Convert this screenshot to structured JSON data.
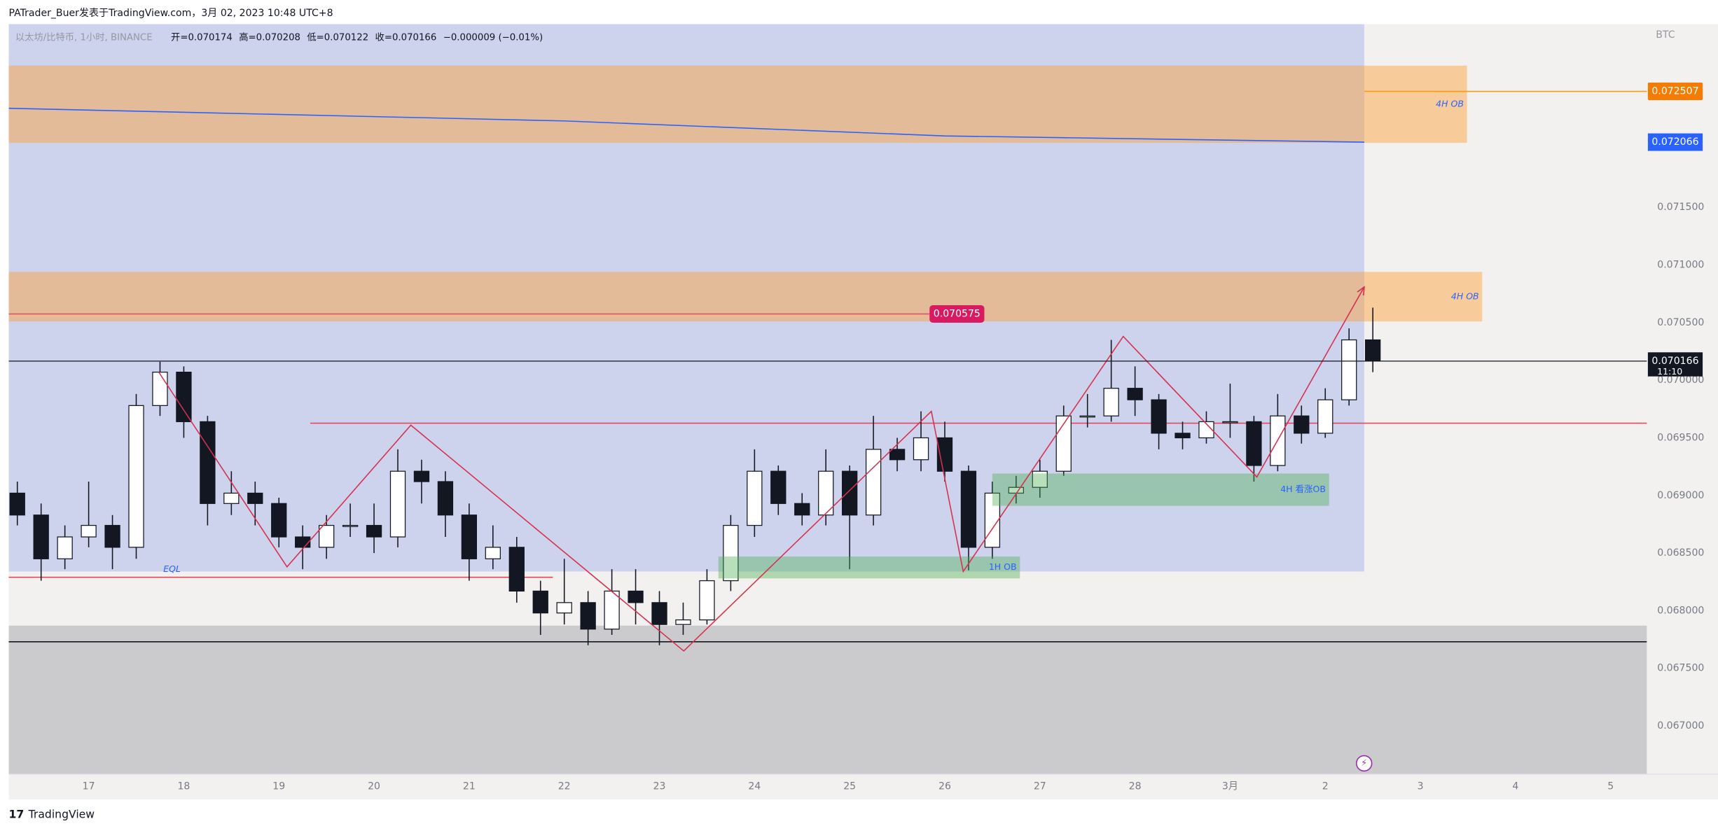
{
  "chart_data": {
    "type": "candlestick",
    "header": "PATrader_Buer发表于TradingView.com，3月 02, 2023 10:48 UTC+8",
    "symbol": "以太坊/比特币, 1小时, BINANCE",
    "ohlc_labels": [
      "开=0.070174",
      "高=0.070208",
      "低=0.070122",
      "收=0.070166",
      "−0.000009 (−0.01%)"
    ],
    "currency": "BTC",
    "countdown": "11:10",
    "footer": "TradingView",
    "xlim": [
      -0.84,
      16.38
    ],
    "ylim": [
      0.06658,
      0.07309
    ],
    "xticks": [
      {
        "value": 0,
        "label": "17"
      },
      {
        "value": 1,
        "label": "18"
      },
      {
        "value": 2,
        "label": "19"
      },
      {
        "value": 3,
        "label": "20"
      },
      {
        "value": 4,
        "label": "21"
      },
      {
        "value": 5,
        "label": "22"
      },
      {
        "value": 6,
        "label": "23"
      },
      {
        "value": 7,
        "label": "24"
      },
      {
        "value": 8,
        "label": "25"
      },
      {
        "value": 9,
        "label": "26"
      },
      {
        "value": 10,
        "label": "27"
      },
      {
        "value": 11,
        "label": "28"
      },
      {
        "value": 12,
        "label": "3月"
      },
      {
        "value": 13,
        "label": "2"
      },
      {
        "value": 14,
        "label": "3"
      },
      {
        "value": 15,
        "label": "4"
      },
      {
        "value": 16,
        "label": "5"
      }
    ],
    "yticks": [
      {
        "value": 0.067,
        "label": "0.067000"
      },
      {
        "value": 0.0675,
        "label": "0.067500"
      },
      {
        "value": 0.068,
        "label": "0.068000"
      },
      {
        "value": 0.0685,
        "label": "0.068500"
      },
      {
        "value": 0.069,
        "label": "0.069000"
      },
      {
        "value": 0.0695,
        "label": "0.069500"
      },
      {
        "value": 0.07,
        "label": "0.070000"
      },
      {
        "value": 0.0705,
        "label": "0.070500"
      },
      {
        "value": 0.071,
        "label": "0.071000"
      },
      {
        "value": 0.0715,
        "label": "0.071500"
      }
    ],
    "up_color": "#ffffff",
    "down_color": "#131722",
    "x": [
      -0.75,
      -0.5,
      -0.25,
      0,
      0.25,
      0.5,
      0.75,
      1,
      1.25,
      1.5,
      1.75,
      2,
      2.25,
      2.5,
      2.75,
      3,
      3.25,
      3.5,
      3.75,
      4,
      4.25,
      4.5,
      4.75,
      5,
      5.25,
      5.5,
      5.75,
      6,
      6.25,
      6.5,
      6.75,
      7,
      7.25,
      7.5,
      7.75,
      8,
      8.25,
      8.5,
      8.75,
      9,
      9.25,
      9.5,
      9.75,
      10,
      10.25,
      10.5,
      10.75,
      11,
      11.25,
      11.5,
      11.75,
      12,
      12.25,
      12.5,
      12.75,
      13,
      13.25,
      13.5
    ],
    "open": [
      0.06902,
      0.06883,
      0.06845,
      0.06864,
      0.06874,
      0.06855,
      0.06978,
      0.07007,
      0.06964,
      0.06893,
      0.06902,
      0.06893,
      0.06864,
      0.06855,
      0.06874,
      0.06874,
      0.06864,
      0.06921,
      0.06912,
      0.06883,
      0.06845,
      0.06855,
      0.06817,
      0.06798,
      0.06807,
      0.06784,
      0.06817,
      0.06807,
      0.06788,
      0.06792,
      0.06826,
      0.06874,
      0.06921,
      0.06893,
      0.06883,
      0.06921,
      0.06883,
      0.0694,
      0.06931,
      0.0695,
      0.06921,
      0.06855,
      0.06902,
      0.06907,
      0.06921,
      0.06969,
      0.06969,
      0.06993,
      0.06983,
      0.06954,
      0.0695,
      0.06964,
      0.06964,
      0.06926,
      0.06969,
      0.06954,
      0.06983,
      0.07035
    ],
    "high": [
      0.06912,
      0.06893,
      0.06874,
      0.06912,
      0.06883,
      0.06988,
      0.07016,
      0.07012,
      0.06969,
      0.06921,
      0.06912,
      0.06898,
      0.06874,
      0.06883,
      0.06893,
      0.06893,
      0.0694,
      0.06931,
      0.06921,
      0.06893,
      0.06874,
      0.06864,
      0.06826,
      0.06845,
      0.06817,
      0.06836,
      0.06836,
      0.06817,
      0.06807,
      0.06836,
      0.06883,
      0.0694,
      0.06926,
      0.06902,
      0.0694,
      0.06926,
      0.06969,
      0.0695,
      0.06973,
      0.06964,
      0.06926,
      0.06912,
      0.06917,
      0.06931,
      0.06978,
      0.06988,
      0.07035,
      0.07012,
      0.06988,
      0.06964,
      0.06973,
      0.06997,
      0.06969,
      0.06988,
      0.06978,
      0.06993,
      0.07045,
      0.07063
    ],
    "low": [
      0.06874,
      0.06826,
      0.06836,
      0.06855,
      0.06836,
      0.06845,
      0.06969,
      0.0695,
      0.06874,
      0.06883,
      0.06874,
      0.06855,
      0.06836,
      0.06845,
      0.06864,
      0.0685,
      0.06855,
      0.06893,
      0.06864,
      0.06826,
      0.06836,
      0.06807,
      0.06779,
      0.06788,
      0.0677,
      0.06779,
      0.06788,
      0.0677,
      0.06779,
      0.06788,
      0.06817,
      0.06864,
      0.06883,
      0.06874,
      0.06874,
      0.06836,
      0.06874,
      0.06921,
      0.06921,
      0.06912,
      0.06835,
      0.06845,
      0.06893,
      0.06898,
      0.06917,
      0.06959,
      0.06964,
      0.06969,
      0.0694,
      0.0694,
      0.06945,
      0.0695,
      0.06912,
      0.06921,
      0.06945,
      0.0695,
      0.06978,
      0.07007
    ],
    "close": [
      0.06883,
      0.06845,
      0.06864,
      0.06874,
      0.06855,
      0.06978,
      0.07007,
      0.06964,
      0.06893,
      0.06902,
      0.06893,
      0.06864,
      0.06855,
      0.06874,
      0.06874,
      0.06864,
      0.06921,
      0.06912,
      0.06883,
      0.06845,
      0.06855,
      0.06817,
      0.06798,
      0.06807,
      0.06784,
      0.06817,
      0.06807,
      0.06788,
      0.06792,
      0.06826,
      0.06874,
      0.06921,
      0.06893,
      0.06883,
      0.06921,
      0.06883,
      0.0694,
      0.06931,
      0.0695,
      0.06921,
      0.06855,
      0.06902,
      0.06907,
      0.06921,
      0.06969,
      0.06969,
      0.06993,
      0.06983,
      0.06954,
      0.0695,
      0.06964,
      0.06964,
      0.06926,
      0.06969,
      0.06954,
      0.06983,
      0.07035,
      0.070166
    ],
    "zones": [
      {
        "x": [
          -0.84,
          13.41
        ],
        "y": [
          0.06834,
          0.07309
        ],
        "color": "rgba(120,140,232,0.3)"
      },
      {
        "x": [
          -0.84,
          16.38
        ],
        "y": [
          0.06658,
          0.06787
        ],
        "color": "rgba(120,123,134,0.32)"
      },
      {
        "x": [
          -0.84,
          14.49
        ],
        "y": [
          0.07206,
          0.07273
        ],
        "color": "rgba(255,160,50,0.45)",
        "label": "4H OB"
      },
      {
        "x": [
          -0.84,
          14.65
        ],
        "y": [
          0.07051,
          0.07094
        ],
        "color": "rgba(255,160,50,0.45)",
        "label": "4H OB"
      },
      {
        "x": [
          6.62,
          9.79
        ],
        "y": [
          0.06828,
          0.06847
        ],
        "color": "rgba(76,175,80,0.4)",
        "label": "1H OB"
      },
      {
        "x": [
          9.5,
          13.04
        ],
        "y": [
          0.06891,
          0.06919
        ],
        "color": "rgba(76,175,80,0.4)",
        "label": "4H 看涨OB"
      }
    ],
    "lines": [
      {
        "x": [
          -0.84,
          16.38
        ],
        "value": 0.06773,
        "color": "#131722"
      },
      {
        "x": [
          2.33,
          16.38
        ],
        "value": 0.069627,
        "color": "#e5485f"
      },
      {
        "x": [
          -0.84,
          8.84
        ],
        "value": 0.070575,
        "color": "#e5485f",
        "tag": "#d81b60"
      },
      {
        "x": [
          -0.84,
          4.88
        ],
        "value": 0.06829,
        "color": "#f23645",
        "label": "EQL"
      },
      {
        "x": [
          13.41,
          16.38
        ],
        "value": 0.072507,
        "color": "#ff9800",
        "tag": "#f57c00"
      }
    ],
    "ma": {
      "x": [
        -0.84,
        5,
        9,
        13.41
      ],
      "values": [
        0.07236,
        0.07225,
        0.07212,
        0.072066
      ],
      "color": "#2962ff"
    },
    "zigzag": {
      "x": [
        0.737,
        2.085,
        3.387,
        6.256,
        8.859,
        9.194,
        10.876,
        12.281,
        13.41
      ],
      "values": [
        0.07007,
        0.06838,
        0.06961,
        0.06765,
        0.06973,
        0.06834,
        0.07038,
        0.06916,
        0.07081
      ],
      "color": "#d6304f"
    }
  }
}
